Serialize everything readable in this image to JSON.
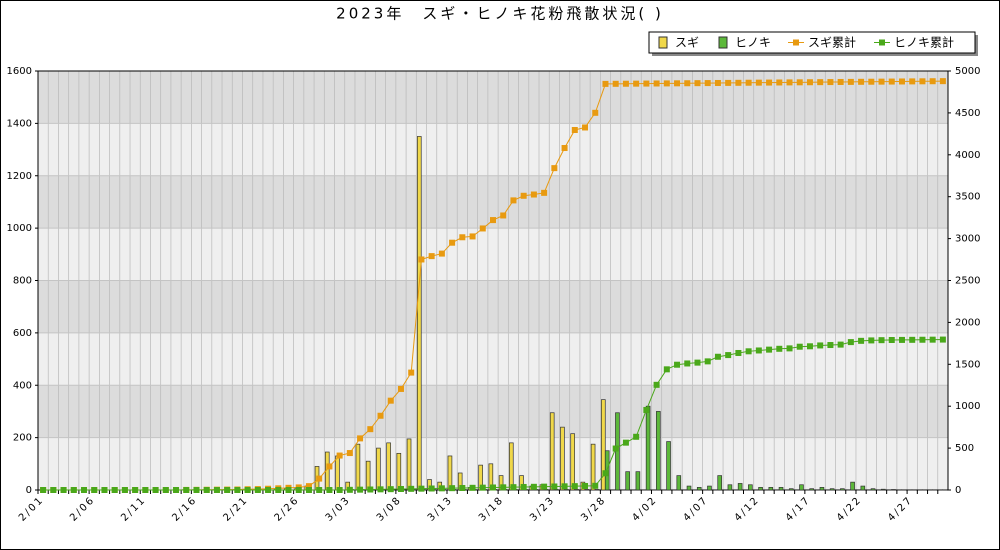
{
  "chart_data": {
    "type": "bar",
    "title": "2023年　スギ・ヒノキ花粉飛散状況( )",
    "categories": [
      "2/01",
      null,
      null,
      null,
      null,
      "2/06",
      null,
      null,
      null,
      null,
      "2/11",
      null,
      null,
      null,
      null,
      "2/16",
      null,
      null,
      null,
      null,
      "2/21",
      null,
      null,
      null,
      null,
      "2/26",
      null,
      null,
      null,
      null,
      "3/03",
      null,
      null,
      null,
      null,
      "3/08",
      null,
      null,
      null,
      null,
      "3/13",
      null,
      null,
      null,
      null,
      "3/18",
      null,
      null,
      null,
      null,
      "3/23",
      null,
      null,
      null,
      null,
      "3/28",
      null,
      null,
      null,
      null,
      "4/02",
      null,
      null,
      null,
      null,
      "4/07",
      null,
      null,
      null,
      null,
      "4/12",
      null,
      null,
      null,
      null,
      "4/17",
      null,
      null,
      null,
      null,
      "4/22",
      null,
      null,
      null,
      null,
      "4/27",
      null,
      null,
      null
    ],
    "series": [
      {
        "name": "スギ",
        "type": "bar",
        "color": "#f0d84a",
        "values": [
          0,
          0,
          0,
          0,
          0,
          0,
          0,
          0,
          0,
          0,
          0,
          0,
          0,
          0,
          1,
          1,
          1,
          1,
          1,
          1,
          3,
          2,
          4,
          5,
          6,
          5,
          15,
          90,
          145,
          130,
          30,
          175,
          110,
          160,
          180,
          140,
          195,
          1350,
          40,
          30,
          130,
          65,
          10,
          95,
          100,
          55,
          180,
          55,
          15,
          20,
          295,
          240,
          215,
          30,
          175,
          345,
          1,
          1,
          1,
          1,
          1,
          1,
          1,
          1,
          1,
          1,
          1,
          1,
          1,
          1,
          1,
          1,
          1,
          1,
          1,
          1,
          1,
          1,
          1,
          1,
          1,
          1,
          1,
          1,
          1,
          1,
          1,
          1,
          1
        ]
      },
      {
        "name": "ヒノキ",
        "type": "bar",
        "color": "#5cb83a",
        "values": [
          0,
          0,
          0,
          0,
          0,
          0,
          0,
          0,
          0,
          0,
          0,
          0,
          0,
          0,
          0,
          0,
          0,
          0,
          0,
          0,
          0,
          0,
          0,
          0,
          0,
          0,
          0,
          0,
          0,
          0,
          2,
          2,
          2,
          2,
          2,
          2,
          2,
          2,
          2,
          2,
          2,
          2,
          2,
          2,
          2,
          2,
          2,
          2,
          2,
          2,
          2,
          2,
          2,
          2,
          2,
          150,
          295,
          70,
          70,
          320,
          300,
          185,
          55,
          15,
          10,
          15,
          55,
          20,
          25,
          20,
          10,
          10,
          10,
          5,
          20,
          5,
          10,
          5,
          5,
          30,
          15,
          5,
          3,
          2,
          1,
          1,
          1,
          1,
          1
        ]
      },
      {
        "name": "スギ累計",
        "type": "line",
        "axis": "y2",
        "color": "#e89a10",
        "values": [
          0,
          0,
          0,
          0,
          0,
          0,
          0,
          0,
          0,
          0,
          0,
          0,
          0,
          0,
          1,
          2,
          3,
          4,
          5,
          6,
          9,
          11,
          15,
          20,
          26,
          31,
          46,
          136,
          281,
          411,
          441,
          616,
          726,
          886,
          1066,
          1206,
          1401,
          2751,
          2791,
          2821,
          2951,
          3016,
          3026,
          3121,
          3221,
          3276,
          3456,
          3511,
          3526,
          3546,
          3841,
          4081,
          4296,
          4326,
          4501,
          4846,
          4847,
          4848,
          4849,
          4850,
          4851,
          4852,
          4853,
          4854,
          4855,
          4856,
          4857,
          4858,
          4859,
          4860,
          4861,
          4862,
          4863,
          4864,
          4865,
          4866,
          4867,
          4868,
          4869,
          4870,
          4871,
          4872,
          4873,
          4874,
          4875,
          4876,
          4877,
          4878,
          4879
        ]
      },
      {
        "name": "ヒノキ累計",
        "type": "line",
        "axis": "y2",
        "color": "#4aa81a",
        "values": [
          0,
          0,
          0,
          0,
          0,
          0,
          0,
          0,
          0,
          0,
          0,
          0,
          0,
          0,
          0,
          0,
          0,
          0,
          0,
          0,
          0,
          0,
          0,
          0,
          0,
          0,
          0,
          0,
          0,
          0,
          2,
          4,
          6,
          8,
          10,
          12,
          14,
          16,
          18,
          20,
          22,
          24,
          26,
          28,
          30,
          32,
          34,
          36,
          38,
          40,
          42,
          44,
          46,
          48,
          50,
          200,
          495,
          565,
          635,
          955,
          1255,
          1440,
          1495,
          1510,
          1520,
          1535,
          1590,
          1610,
          1635,
          1655,
          1665,
          1675,
          1685,
          1690,
          1710,
          1715,
          1725,
          1730,
          1735,
          1765,
          1780,
          1785,
          1788,
          1790,
          1791,
          1792,
          1793,
          1794,
          1795
        ]
      }
    ],
    "ylim": [
      0,
      1600
    ],
    "yticks": [
      0,
      200,
      400,
      600,
      800,
      1000,
      1200,
      1400,
      1600
    ],
    "y2lim": [
      0,
      5000
    ],
    "y2ticks": [
      0,
      500,
      1000,
      1500,
      2000,
      2500,
      3000,
      3500,
      4000,
      4500,
      5000
    ],
    "grid": true,
    "legend": "top-right"
  }
}
